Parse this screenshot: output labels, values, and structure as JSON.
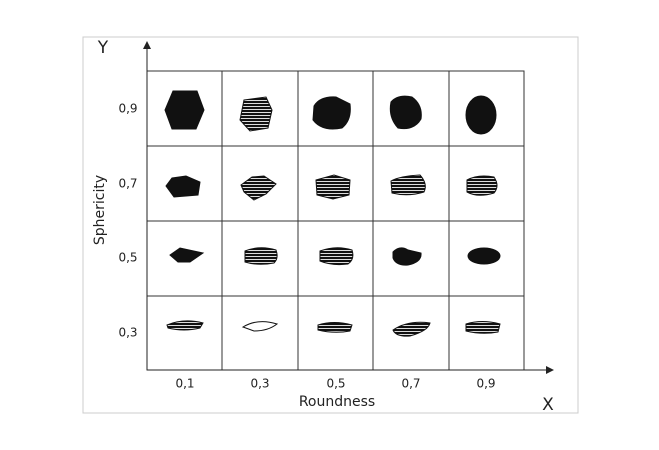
{
  "axes": {
    "y_arrow": "Y",
    "x_arrow": "X",
    "y_title": "Sphericity",
    "x_title": "Roundness"
  },
  "rows": [
    "0,9",
    "0,7",
    "0,5",
    "0,3"
  ],
  "columns": [
    "0,1",
    "0,3",
    "0,5",
    "0,7",
    "0,9"
  ]
}
